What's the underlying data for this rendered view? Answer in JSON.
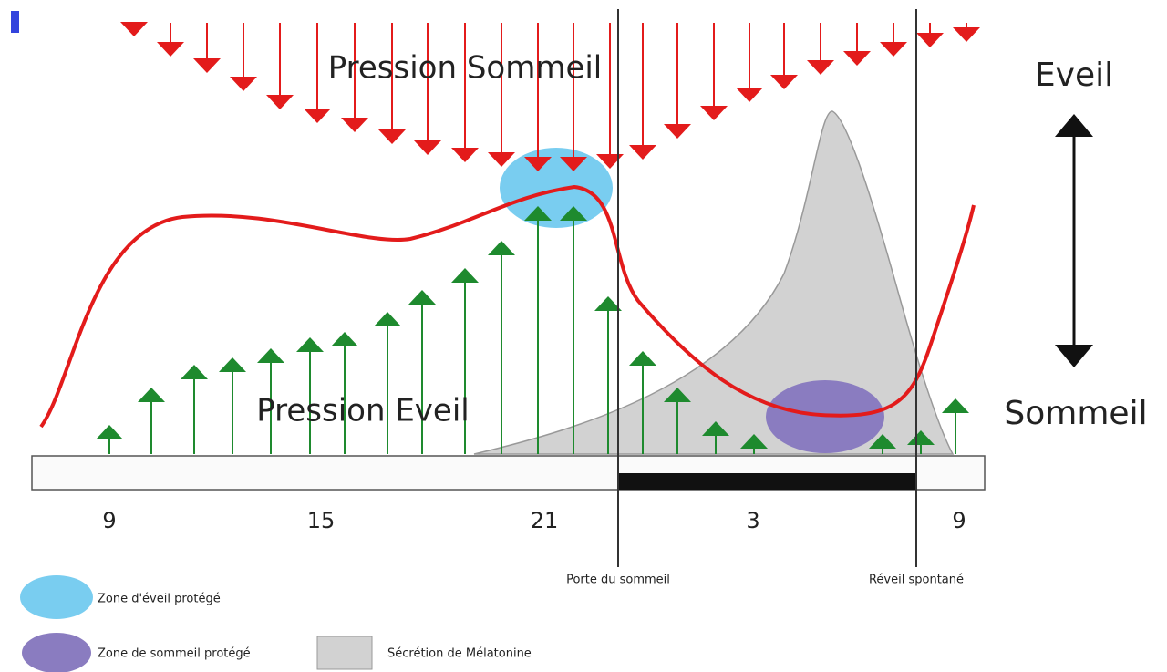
{
  "diagram": {
    "labels": {
      "sleep_pressure": "Pression Sommeil",
      "wake_pressure": "Pression Eveil",
      "wake": "Eveil",
      "sleep": "Sommeil"
    },
    "axis_ticks": [
      "9",
      "15",
      "21",
      "3",
      "9"
    ],
    "markers": {
      "sleep_gate": "Porte du sommeil",
      "spontaneous_wake": "Réveil spontané"
    },
    "legend": [
      "Zone d'éveil protégé",
      "Zone de sommeil protégé",
      "Sécrétion de Mélatonine"
    ]
  }
}
